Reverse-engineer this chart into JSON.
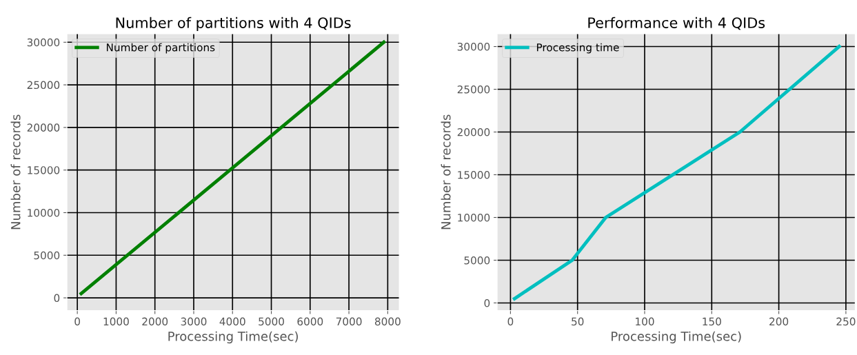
{
  "chart_data": [
    {
      "type": "line",
      "title": "Number of partitions with 4 QIDs",
      "xlabel": "Processing Time(sec)",
      "ylabel": "Number of records",
      "series": [
        {
          "name": "Number of partitions",
          "color": "#008000",
          "x": [
            100,
            7900
          ],
          "values": [
            500,
            30000
          ]
        }
      ],
      "xlim": [
        -270,
        8300
      ],
      "ylim": [
        -1500,
        31000
      ],
      "xticks": [
        0,
        1000,
        2000,
        3000,
        4000,
        5000,
        6000,
        7000,
        8000
      ],
      "yticks": [
        0,
        5000,
        10000,
        15000,
        20000,
        25000,
        30000
      ],
      "grid": true,
      "legend": "top left"
    },
    {
      "type": "line",
      "title": "Performance with 4 QIDs",
      "xlabel": "Processing Time(sec)",
      "ylabel": "Number of records",
      "series": [
        {
          "name": "Processing time",
          "color": "#00bfbf",
          "x": [
            3,
            46,
            71,
            171,
            245
          ],
          "values": [
            500,
            5000,
            10000,
            20000,
            30000
          ]
        }
      ],
      "xlim": [
        -10,
        257
      ],
      "ylim": [
        -900,
        31500
      ],
      "xticks": [
        0,
        50,
        100,
        150,
        200,
        250
      ],
      "yticks": [
        0,
        5000,
        10000,
        15000,
        20000,
        25000,
        30000
      ],
      "grid": true,
      "legend": "top left"
    }
  ]
}
